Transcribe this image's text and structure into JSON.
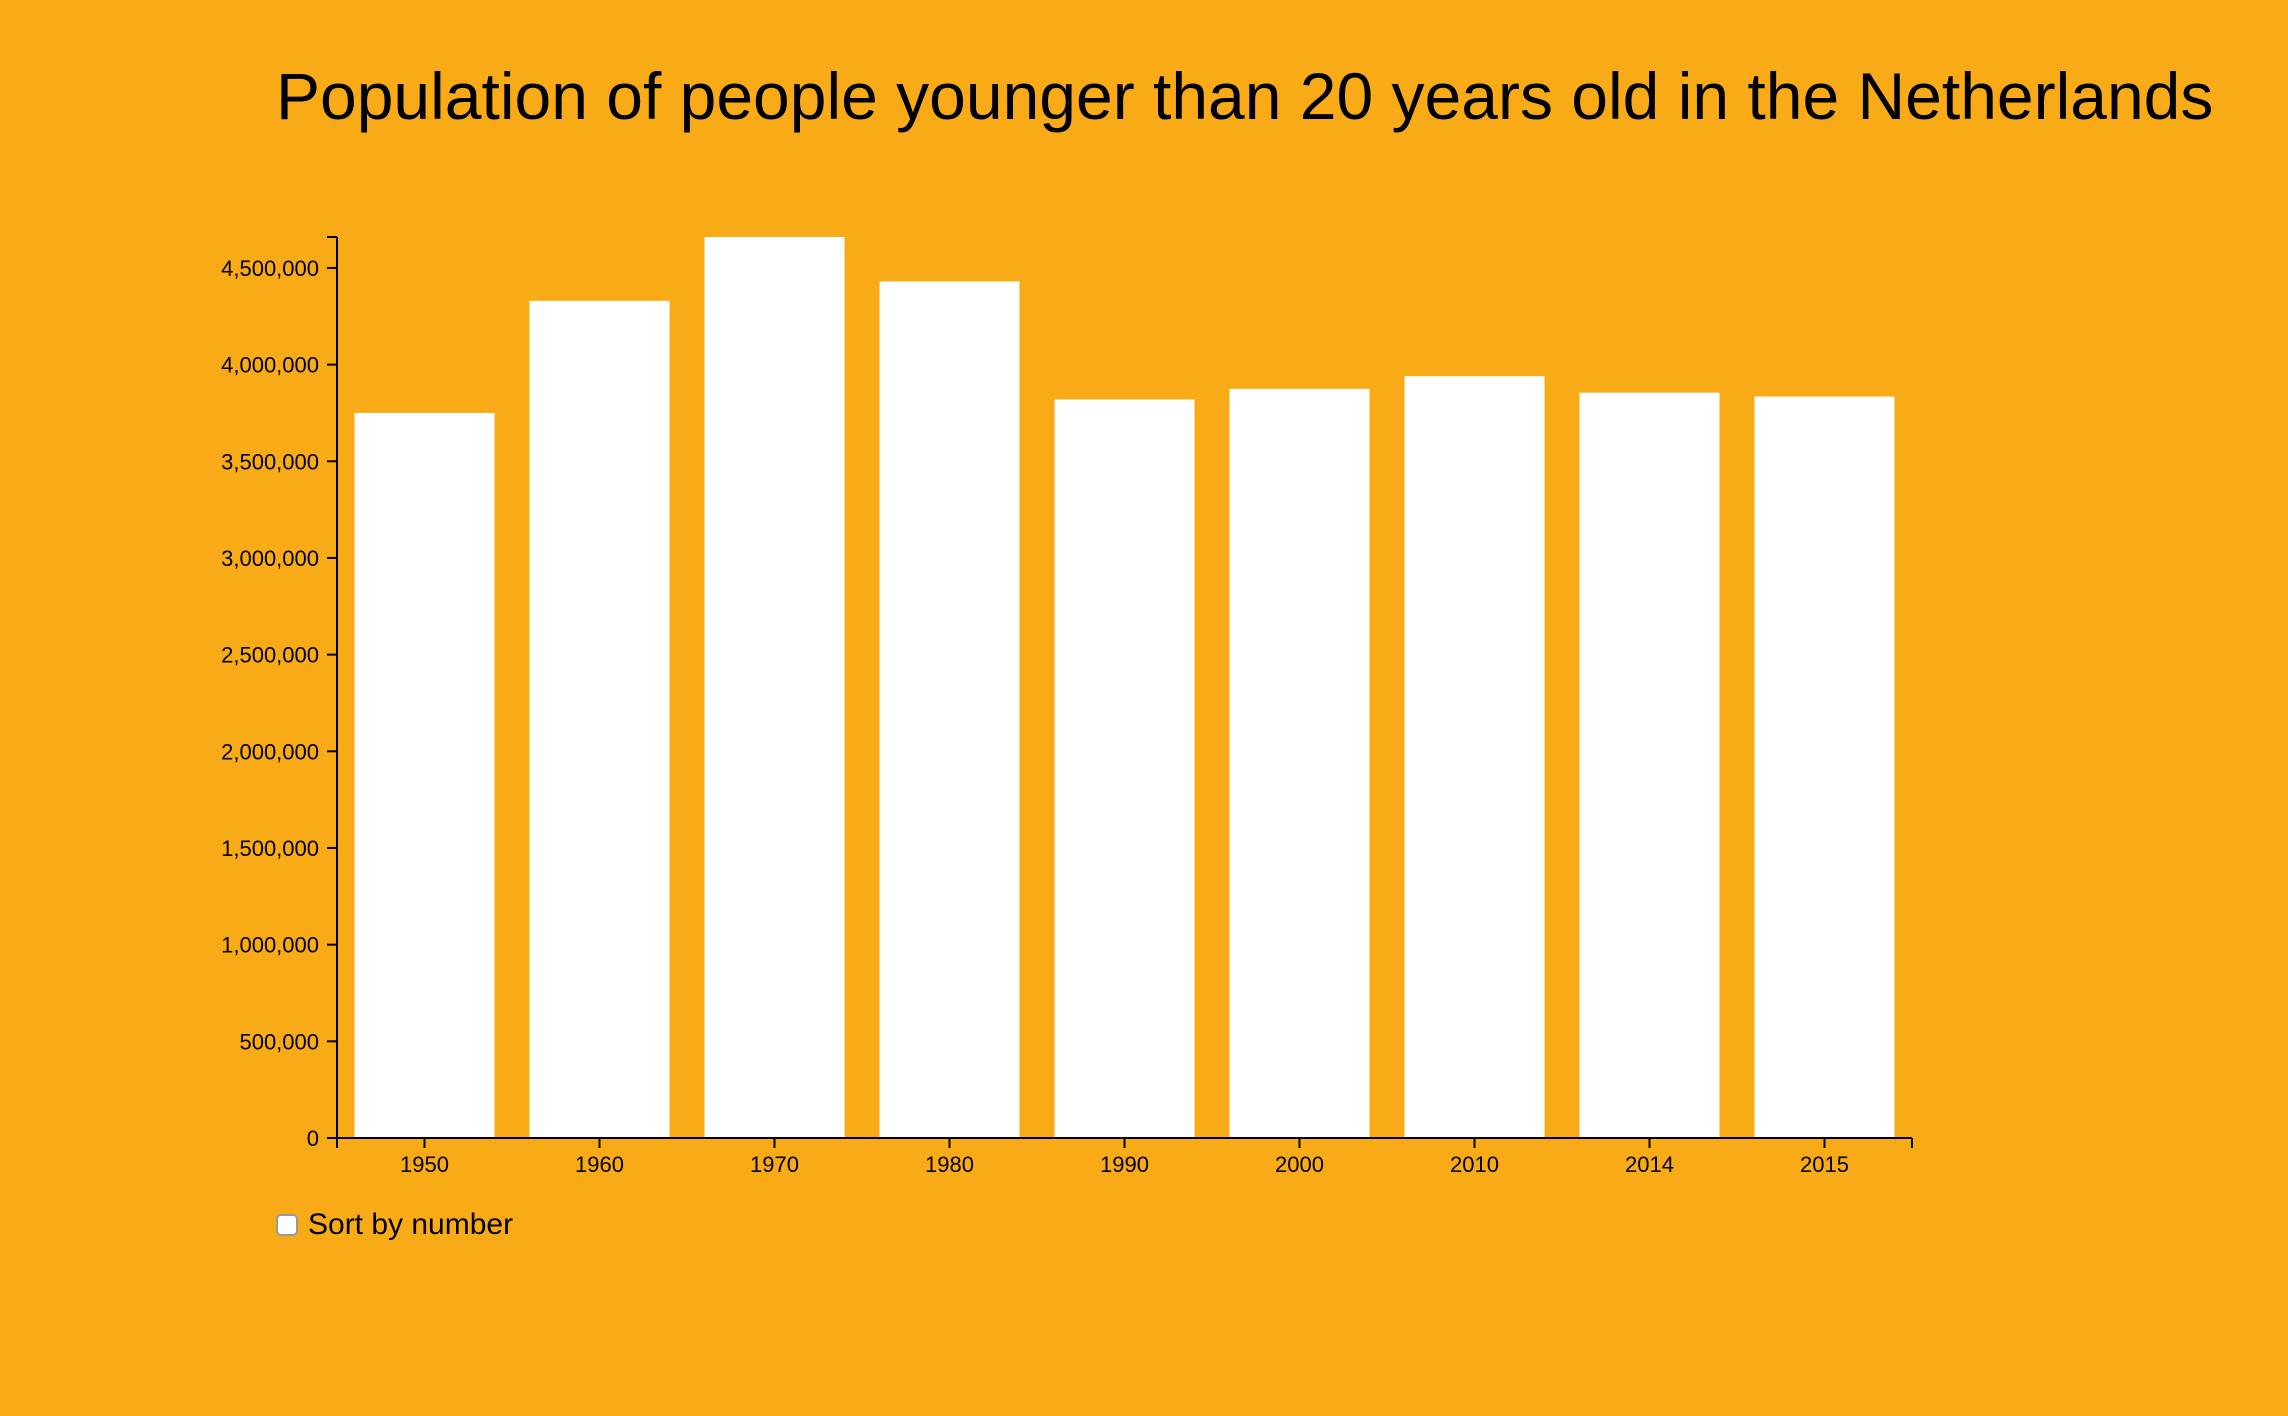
{
  "page": {
    "title": "Population of people younger than 20 years old in the Netherlands",
    "sort_label": "Sort by number",
    "sort_checked": false
  },
  "colors": {
    "background": "#f8ab17",
    "bar": "#ffffff",
    "axis": "#000000"
  },
  "chart_data": {
    "type": "bar",
    "title": "Population of people younger than 20 years old in the Netherlands",
    "xlabel": "",
    "ylabel": "",
    "categories": [
      "1950",
      "1960",
      "1970",
      "1980",
      "1990",
      "2000",
      "2010",
      "2014",
      "2015"
    ],
    "values": [
      3750000,
      4330000,
      4660000,
      4430000,
      3820000,
      3875000,
      3940000,
      3855000,
      3835000
    ],
    "ylim": [
      0,
      4660000
    ],
    "y_ticks": [
      0,
      500000,
      1000000,
      1500000,
      2000000,
      2500000,
      3000000,
      3500000,
      4000000,
      4500000
    ],
    "y_tick_labels": [
      "0",
      "500,000",
      "1,000,000",
      "1,500,000",
      "2,000,000",
      "2,500,000",
      "3,000,000",
      "3,500,000",
      "4,000,000",
      "4,500,000"
    ],
    "grid": false,
    "legend": "none"
  }
}
